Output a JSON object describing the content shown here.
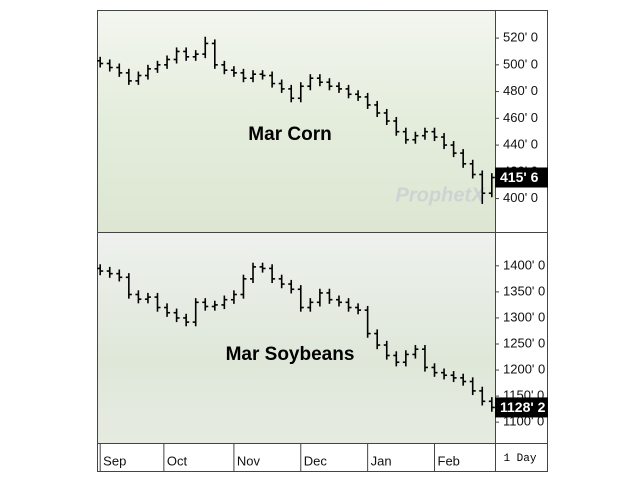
{
  "interval": "1 Day",
  "chart_data": [
    {
      "type": "ohlc",
      "title": "Mar Corn",
      "watermark": "ProphetX",
      "color": "#000000",
      "x": [
        0,
        3,
        6,
        9,
        12,
        15,
        18,
        21,
        24,
        27,
        30,
        33,
        36,
        39,
        42,
        45,
        48,
        51,
        54,
        57,
        60,
        63,
        66,
        69,
        72,
        75,
        78,
        81,
        84,
        87,
        90,
        93,
        96,
        99,
        102,
        105,
        108,
        111,
        114,
        117,
        120,
        123
      ],
      "open": [
        503,
        501,
        498,
        494,
        488,
        492,
        497,
        500,
        504,
        510,
        506,
        508,
        516,
        500,
        496,
        494,
        490,
        493,
        492,
        486,
        482,
        475,
        484,
        490,
        487,
        484,
        482,
        478,
        476,
        470,
        464,
        458,
        450,
        444,
        447,
        450,
        446,
        440,
        434,
        426,
        418,
        404
      ],
      "high": [
        506,
        504,
        501,
        497,
        495,
        500,
        503,
        507,
        513,
        513,
        511,
        521,
        519,
        503,
        499,
        497,
        496,
        496,
        495,
        489,
        485,
        487,
        493,
        493,
        490,
        487,
        485,
        481,
        479,
        473,
        467,
        461,
        453,
        450,
        453,
        453,
        449,
        443,
        437,
        429,
        421,
        419
      ],
      "low": [
        498,
        495,
        491,
        485,
        485,
        489,
        494,
        497,
        501,
        503,
        503,
        505,
        497,
        493,
        491,
        487,
        487,
        489,
        483,
        479,
        472,
        472,
        481,
        484,
        481,
        479,
        475,
        473,
        467,
        461,
        455,
        447,
        441,
        441,
        444,
        443,
        437,
        431,
        423,
        415,
        396,
        401
      ],
      "close": [
        501,
        498,
        494,
        488,
        492,
        497,
        500,
        504,
        510,
        506,
        508,
        516,
        500,
        496,
        494,
        490,
        493,
        492,
        486,
        482,
        475,
        484,
        490,
        487,
        484,
        482,
        478,
        476,
        470,
        464,
        458,
        450,
        444,
        447,
        450,
        446,
        440,
        434,
        426,
        418,
        404,
        415.75
      ],
      "xlim": [
        -1,
        124
      ],
      "ylim": [
        375,
        541
      ],
      "yticks": [
        {
          "value": 400,
          "label": "400' 0"
        },
        {
          "value": 420,
          "label": "420' 0"
        },
        {
          "value": 440,
          "label": "440' 0"
        },
        {
          "value": 460,
          "label": "460' 0"
        },
        {
          "value": 480,
          "label": "480' 0"
        },
        {
          "value": 500,
          "label": "500' 0"
        },
        {
          "value": 520,
          "label": "520' 0"
        }
      ],
      "last_price": {
        "value": 415.75,
        "label": "415' 6"
      }
    },
    {
      "type": "ohlc",
      "title": "Mar Soybeans",
      "color": "#000000",
      "x": [
        0,
        3,
        6,
        9,
        12,
        15,
        18,
        21,
        24,
        27,
        30,
        33,
        36,
        39,
        42,
        45,
        48,
        51,
        54,
        57,
        60,
        63,
        66,
        69,
        72,
        75,
        78,
        81,
        84,
        87,
        90,
        93,
        96,
        99,
        102,
        105,
        108,
        111,
        114,
        117,
        120,
        123
      ],
      "open": [
        1395,
        1390,
        1385,
        1378,
        1345,
        1336,
        1340,
        1320,
        1310,
        1300,
        1292,
        1330,
        1322,
        1325,
        1335,
        1345,
        1375,
        1398,
        1395,
        1375,
        1365,
        1355,
        1320,
        1330,
        1348,
        1335,
        1330,
        1320,
        1315,
        1270,
        1248,
        1228,
        1215,
        1230,
        1240,
        1205,
        1195,
        1190,
        1185,
        1178,
        1160,
        1140
      ],
      "high": [
        1403,
        1398,
        1393,
        1386,
        1353,
        1348,
        1348,
        1328,
        1318,
        1308,
        1338,
        1338,
        1333,
        1343,
        1353,
        1383,
        1406,
        1406,
        1403,
        1383,
        1373,
        1363,
        1338,
        1356,
        1356,
        1343,
        1338,
        1328,
        1323,
        1278,
        1256,
        1236,
        1238,
        1248,
        1248,
        1213,
        1203,
        1198,
        1193,
        1186,
        1168,
        1148
      ],
      "low": [
        1382,
        1377,
        1370,
        1337,
        1328,
        1328,
        1312,
        1302,
        1292,
        1284,
        1284,
        1314,
        1314,
        1317,
        1327,
        1337,
        1367,
        1387,
        1367,
        1357,
        1347,
        1312,
        1312,
        1322,
        1327,
        1322,
        1312,
        1307,
        1262,
        1240,
        1220,
        1207,
        1207,
        1222,
        1197,
        1187,
        1182,
        1177,
        1170,
        1152,
        1132,
        1120
      ],
      "close": [
        1390,
        1385,
        1378,
        1345,
        1336,
        1340,
        1320,
        1310,
        1300,
        1292,
        1330,
        1322,
        1325,
        1335,
        1345,
        1375,
        1398,
        1395,
        1375,
        1365,
        1355,
        1320,
        1330,
        1348,
        1335,
        1330,
        1320,
        1315,
        1270,
        1248,
        1228,
        1215,
        1230,
        1240,
        1205,
        1195,
        1190,
        1185,
        1178,
        1160,
        1140,
        1128.25
      ],
      "xlim": [
        -1,
        124
      ],
      "ylim": [
        1060,
        1463
      ],
      "yticks": [
        {
          "value": 1100,
          "label": "1100' 0"
        },
        {
          "value": 1150,
          "label": "1150' 0"
        },
        {
          "value": 1200,
          "label": "1200' 0"
        },
        {
          "value": 1250,
          "label": "1250' 0"
        },
        {
          "value": 1300,
          "label": "1300' 0"
        },
        {
          "value": 1350,
          "label": "1350' 0"
        },
        {
          "value": 1400,
          "label": "1400' 0"
        }
      ],
      "xticks": [
        {
          "value": 0,
          "label": "Sep"
        },
        {
          "value": 20,
          "label": "Oct"
        },
        {
          "value": 42,
          "label": "Nov"
        },
        {
          "value": 63,
          "label": "Dec"
        },
        {
          "value": 84,
          "label": "Jan"
        },
        {
          "value": 105,
          "label": "Feb"
        }
      ],
      "last_price": {
        "value": 1128.25,
        "label": "1128' 2"
      }
    }
  ]
}
